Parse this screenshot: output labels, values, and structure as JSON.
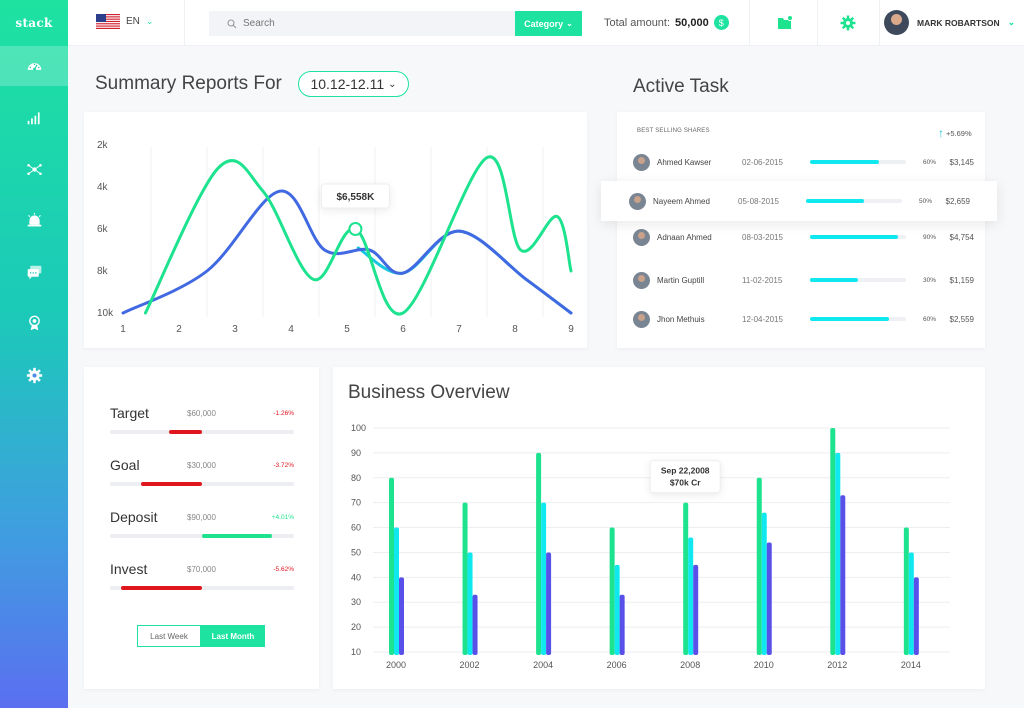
{
  "app": {
    "logo": "stack"
  },
  "sidebar": {
    "items": [
      {
        "icon": "dashboard-icon",
        "active": true
      },
      {
        "icon": "signal-bars-icon"
      },
      {
        "icon": "network-icon"
      },
      {
        "icon": "alarm-icon"
      },
      {
        "icon": "chat-icon"
      },
      {
        "icon": "award-icon"
      },
      {
        "icon": "gear-icon"
      }
    ]
  },
  "header": {
    "language": "EN",
    "search_placeholder": "Search",
    "category_label": "Category",
    "total_label": "Total amount:",
    "total_value": "50,000",
    "currency_symbol": "$",
    "user_name": "MARK ROBARTSON"
  },
  "summary": {
    "title": "Summary Reports For",
    "date_range": "10.12-12.11",
    "tooltip": "$6,558K"
  },
  "chart_data": [
    {
      "type": "line",
      "x": [
        1,
        2,
        3,
        4,
        5,
        6,
        7,
        8,
        9
      ],
      "y_ticks": [
        "2k",
        "4k",
        "6k",
        "8k",
        "10k"
      ],
      "series": [
        {
          "color": "#1de28e",
          "points": [
            [
              1.4,
              10
            ],
            [
              2.7,
              3.1
            ],
            [
              3.5,
              4.2
            ],
            [
              4.4,
              8.4
            ],
            [
              5.15,
              6
            ],
            [
              6.0,
              10
            ],
            [
              7.5,
              2.6
            ],
            [
              8.1,
              7.0
            ],
            [
              8.75,
              5.4
            ],
            [
              9.0,
              8
            ]
          ]
        },
        {
          "color": "#4169e1",
          "points": [
            [
              1,
              10
            ],
            [
              2.5,
              8
            ],
            [
              3.8,
              4.2
            ],
            [
              4.6,
              7.0
            ],
            [
              5.4,
              7.0
            ],
            [
              6.0,
              8.1
            ],
            [
              7.0,
              6.1
            ],
            [
              8.2,
              8.4
            ],
            [
              9.0,
              10
            ]
          ]
        },
        {
          "color": "#19c6e0",
          "points": [
            [
              5.2,
              6.9
            ],
            [
              6.0,
              8.1
            ],
            [
              7.0,
              6.1
            ],
            [
              8.2,
              8.4
            ],
            [
              9.0,
              10
            ]
          ]
        }
      ],
      "marker": {
        "x": 5.15,
        "y": 6
      }
    },
    {
      "type": "bar",
      "title": "Business Overview",
      "categories": [
        "2000",
        "2002",
        "2004",
        "2006",
        "2008",
        "2010",
        "2012",
        "2014"
      ],
      "ylim": [
        10,
        100
      ],
      "y_ticks": [
        100,
        90,
        80,
        70,
        60,
        50,
        40,
        30,
        20,
        10
      ],
      "series": [
        {
          "color": "#1de28e",
          "values": [
            80,
            70,
            90,
            60,
            70,
            80,
            100,
            60
          ]
        },
        {
          "color": "#10e8f0",
          "values": [
            60,
            50,
            70,
            45,
            56,
            66,
            90,
            50
          ]
        },
        {
          "color": "#5850e8",
          "values": [
            40,
            33,
            50,
            33,
            45,
            54,
            73,
            40
          ]
        }
      ],
      "tooltip": {
        "category": "2008",
        "line1": "Sep 22,2008",
        "line2": "$70k Cr"
      }
    }
  ],
  "active_task": {
    "title": "Active Task",
    "header": "BEST SELLING SHARES",
    "delta": "+5.69%",
    "rows": [
      {
        "name": "Ahmed Kawser",
        "date": "02-06-2015",
        "pct": "60%",
        "fill": 0.72,
        "amount": "$3,145"
      },
      {
        "name": "Nayeem Ahmed",
        "date": "05-08-2015",
        "pct": "50%",
        "fill": 0.6,
        "amount": "$2,659",
        "highlight": true
      },
      {
        "name": "Adnaan Ahmed",
        "date": "08-03-2015",
        "pct": "90%",
        "fill": 0.92,
        "amount": "$4,754"
      },
      {
        "name": "Martin Guptill",
        "date": "11-02-2015",
        "pct": "30%",
        "fill": 0.5,
        "amount": "$1,159"
      },
      {
        "name": "Jhon Methuis",
        "date": "12-04-2015",
        "pct": "60%",
        "fill": 0.82,
        "amount": "$2,559"
      }
    ]
  },
  "targets": [
    {
      "label": "Target",
      "value": "$60,000",
      "change": "-1.26%",
      "color": "#e0161d",
      "from": 0.32,
      "to": 0.5
    },
    {
      "label": "Goal",
      "value": "$30,000",
      "change": "-3.72%",
      "color": "#e0161d",
      "from": 0.17,
      "to": 0.5
    },
    {
      "label": "Deposit",
      "value": "$90,000",
      "change": "+4.01%",
      "color": "#1de28e",
      "from": 0.5,
      "to": 0.88
    },
    {
      "label": "Invest",
      "value": "$70,000",
      "change": "-5.62%",
      "color": "#e0161d",
      "from": 0.06,
      "to": 0.5
    }
  ],
  "period_toggle": {
    "last_week": "Last Week",
    "last_month": "Last Month"
  }
}
